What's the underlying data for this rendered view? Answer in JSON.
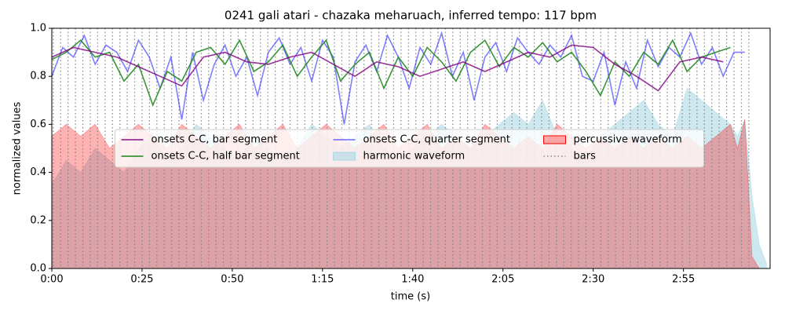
{
  "chart_data": {
    "type": "line",
    "title": "0241 gali atari - chazaka meharuach, inferred tempo: 117 bpm",
    "x_label": "time (s)",
    "y_label": "normalized values",
    "xlim": [
      0,
      199
    ],
    "ylim": [
      0,
      1
    ],
    "xticks": [
      {
        "value": 0,
        "label": "0:00"
      },
      {
        "value": 25,
        "label": "0:25"
      },
      {
        "value": 50,
        "label": "0:50"
      },
      {
        "value": 75,
        "label": "1:15"
      },
      {
        "value": 100,
        "label": "1:40"
      },
      {
        "value": 125,
        "label": "2:05"
      },
      {
        "value": 150,
        "label": "2:30"
      },
      {
        "value": 175,
        "label": "2:55"
      }
    ],
    "yticks": [
      {
        "value": 0,
        "label": "0.0"
      },
      0.2,
      0.4,
      0.6,
      0.8,
      {
        "value": 1,
        "label": "1.0"
      }
    ],
    "legend": "center",
    "series": [
      {
        "name": "onsets C-C, bar segment",
        "style": "line",
        "color": "#800080",
        "alpha": 0.8,
        "x": [
          0,
          6,
          12,
          18,
          24,
          30,
          36,
          42,
          48,
          54,
          60,
          66,
          72,
          78,
          84,
          90,
          96,
          102,
          108,
          114,
          120,
          126,
          132,
          138,
          144,
          150,
          156,
          162,
          168,
          174,
          180,
          186
        ],
        "values": [
          0.88,
          0.92,
          0.9,
          0.88,
          0.84,
          0.8,
          0.76,
          0.88,
          0.9,
          0.86,
          0.85,
          0.88,
          0.9,
          0.85,
          0.8,
          0.86,
          0.84,
          0.8,
          0.83,
          0.86,
          0.82,
          0.86,
          0.9,
          0.88,
          0.93,
          0.92,
          0.85,
          0.8,
          0.74,
          0.86,
          0.88,
          0.86
        ]
      },
      {
        "name": "onsets C-C, half bar segment",
        "style": "line",
        "color": "#228b22",
        "alpha": 0.9,
        "x": [
          0,
          4,
          8,
          12,
          16,
          20,
          24,
          28,
          32,
          36,
          40,
          44,
          48,
          52,
          56,
          60,
          64,
          68,
          72,
          76,
          80,
          84,
          88,
          92,
          96,
          100,
          104,
          108,
          112,
          116,
          120,
          124,
          128,
          132,
          136,
          140,
          144,
          148,
          152,
          156,
          160,
          164,
          168,
          172,
          176,
          180,
          184,
          188
        ],
        "values": [
          0.87,
          0.9,
          0.95,
          0.88,
          0.9,
          0.78,
          0.85,
          0.68,
          0.82,
          0.78,
          0.9,
          0.92,
          0.85,
          0.95,
          0.82,
          0.86,
          0.93,
          0.8,
          0.88,
          0.95,
          0.78,
          0.85,
          0.9,
          0.75,
          0.88,
          0.8,
          0.92,
          0.86,
          0.78,
          0.9,
          0.95,
          0.84,
          0.92,
          0.88,
          0.94,
          0.86,
          0.9,
          0.82,
          0.72,
          0.86,
          0.8,
          0.9,
          0.85,
          0.95,
          0.82,
          0.88,
          0.9,
          0.92
        ]
      },
      {
        "name": "onsets C-C, quarter segment",
        "style": "line",
        "color": "#0000ff",
        "alpha": 0.5,
        "x": [
          0,
          3,
          6,
          9,
          12,
          15,
          18,
          21,
          24,
          27,
          30,
          33,
          36,
          39,
          42,
          45,
          48,
          51,
          54,
          57,
          60,
          63,
          66,
          69,
          72,
          75,
          78,
          81,
          84,
          87,
          90,
          93,
          96,
          99,
          102,
          105,
          108,
          111,
          114,
          117,
          120,
          123,
          126,
          129,
          132,
          135,
          138,
          141,
          144,
          147,
          150,
          153,
          156,
          159,
          162,
          165,
          168,
          171,
          174,
          177,
          180,
          183,
          186,
          189,
          192
        ],
        "values": [
          0.8,
          0.92,
          0.88,
          0.97,
          0.85,
          0.93,
          0.9,
          0.82,
          0.95,
          0.88,
          0.75,
          0.88,
          0.62,
          0.9,
          0.7,
          0.85,
          0.93,
          0.8,
          0.88,
          0.72,
          0.9,
          0.96,
          0.85,
          0.92,
          0.78,
          0.95,
          0.88,
          0.6,
          0.86,
          0.93,
          0.82,
          0.97,
          0.88,
          0.75,
          0.92,
          0.85,
          0.98,
          0.8,
          0.9,
          0.7,
          0.88,
          0.94,
          0.82,
          0.96,
          0.9,
          0.85,
          0.93,
          0.88,
          0.97,
          0.8,
          0.78,
          0.9,
          0.68,
          0.86,
          0.75,
          0.95,
          0.84,
          0.92,
          0.88,
          0.98,
          0.85,
          0.92,
          0.8,
          0.9,
          0.9
        ]
      },
      {
        "name": "harmonic waveform",
        "style": "area",
        "color": "#add8e6",
        "alpha": 0.6,
        "x": [
          0,
          4,
          8,
          12,
          16,
          20,
          24,
          28,
          32,
          36,
          40,
          44,
          48,
          52,
          56,
          60,
          64,
          68,
          72,
          76,
          80,
          84,
          88,
          92,
          96,
          100,
          104,
          108,
          112,
          116,
          120,
          124,
          128,
          132,
          136,
          140,
          144,
          148,
          152,
          156,
          160,
          164,
          168,
          172,
          176,
          180,
          184,
          188,
          190,
          192,
          194,
          196,
          198
        ],
        "values": [
          0.35,
          0.45,
          0.4,
          0.5,
          0.45,
          0.4,
          0.5,
          0.55,
          0.45,
          0.5,
          0.6,
          0.55,
          0.5,
          0.45,
          0.55,
          0.5,
          0.45,
          0.5,
          0.6,
          0.55,
          0.5,
          0.55,
          0.6,
          0.5,
          0.45,
          0.5,
          0.55,
          0.6,
          0.55,
          0.5,
          0.55,
          0.6,
          0.65,
          0.6,
          0.7,
          0.55,
          0.5,
          0.45,
          0.55,
          0.6,
          0.65,
          0.7,
          0.6,
          0.55,
          0.75,
          0.7,
          0.65,
          0.6,
          0.55,
          0.62,
          0.3,
          0.1,
          0.02
        ]
      },
      {
        "name": "percussive waveform",
        "style": "area",
        "color": "#ff0000",
        "alpha": 0.3,
        "x": [
          0,
          4,
          8,
          12,
          16,
          20,
          24,
          28,
          32,
          36,
          40,
          44,
          48,
          52,
          56,
          60,
          64,
          68,
          72,
          76,
          80,
          84,
          88,
          92,
          96,
          100,
          104,
          108,
          112,
          116,
          120,
          124,
          128,
          132,
          136,
          140,
          144,
          148,
          152,
          156,
          160,
          164,
          168,
          172,
          176,
          180,
          184,
          188,
          190,
          192,
          194,
          196,
          198
        ],
        "values": [
          0.55,
          0.6,
          0.55,
          0.6,
          0.5,
          0.55,
          0.6,
          0.55,
          0.5,
          0.6,
          0.55,
          0.5,
          0.55,
          0.6,
          0.5,
          0.55,
          0.6,
          0.5,
          0.55,
          0.6,
          0.55,
          0.5,
          0.55,
          0.6,
          0.5,
          0.55,
          0.6,
          0.5,
          0.55,
          0.5,
          0.6,
          0.55,
          0.5,
          0.55,
          0.5,
          0.6,
          0.55,
          0.5,
          0.55,
          0.5,
          0.55,
          0.5,
          0.55,
          0.5,
          0.55,
          0.5,
          0.55,
          0.6,
          0.5,
          0.62,
          0.05,
          0,
          0
        ]
      },
      {
        "name": "bars",
        "style": "dotted",
        "color": "#808080",
        "alpha": 0.9,
        "x": [
          0.4,
          2.45,
          4.5,
          6.55,
          8.6,
          10.65,
          12.7,
          14.75,
          16.8,
          18.85,
          20.9,
          22.95,
          25,
          27.05,
          29.1,
          31.15,
          33.2,
          35.25,
          37.3,
          39.35,
          41.4,
          43.45,
          45.5,
          47.55,
          49.6,
          51.65,
          53.7,
          55.75,
          57.8,
          59.85,
          61.9,
          63.95,
          66,
          68.05,
          70.1,
          72.15,
          74.2,
          76.25,
          78.3,
          80.35,
          82.4,
          84.45,
          86.5,
          88.55,
          90.6,
          92.65,
          94.7,
          96.75,
          98.8,
          100.85,
          102.9,
          104.95,
          107,
          109.05,
          111.1,
          113.15,
          115.2,
          117.25,
          119.3,
          121.35,
          123.4,
          125.45,
          127.5,
          129.55,
          131.6,
          133.65,
          135.7,
          137.75,
          139.8,
          141.85,
          143.9,
          145.95,
          148,
          150.05,
          152.1,
          154.15,
          156.2,
          158.25,
          160.3,
          162.35,
          164.4,
          166.45,
          168.5,
          170.55,
          172.6,
          174.65,
          176.7,
          178.75,
          180.8,
          182.85,
          184.9,
          186.95,
          189,
          191.05,
          193.1
        ]
      }
    ]
  }
}
